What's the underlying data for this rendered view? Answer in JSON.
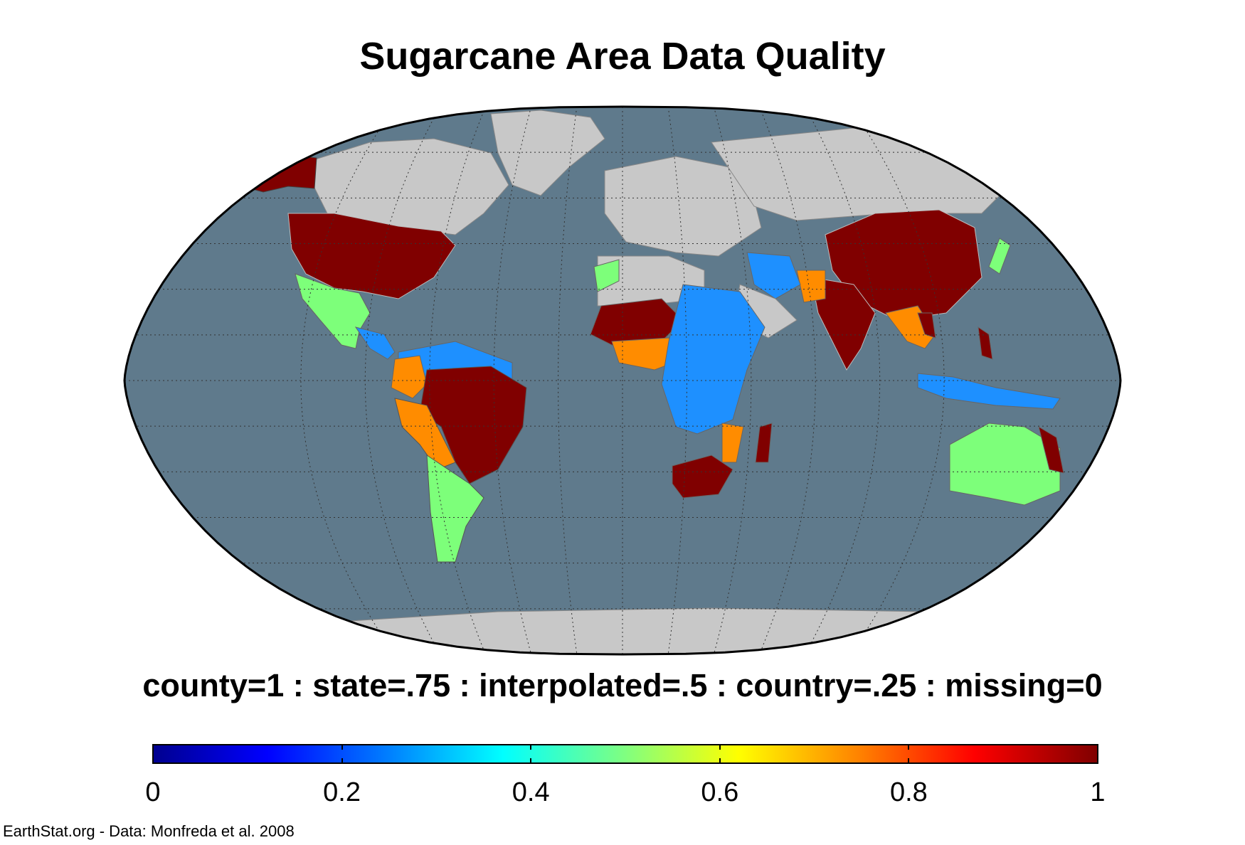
{
  "title": "Sugarcane Area Data Quality",
  "legend": {
    "caption": "county=1 : state=.75 : interpolated=.5 : country=.25 : missing=0",
    "colormap": "jet",
    "range": [
      0,
      1
    ],
    "ticks": [
      "0",
      "0.2",
      "0.4",
      "0.6",
      "0.8",
      "1"
    ],
    "tick_values": [
      0,
      0.2,
      0.4,
      0.6,
      0.8,
      1
    ],
    "categories": [
      {
        "label": "county",
        "value": 1,
        "color": "#800000"
      },
      {
        "label": "state",
        "value": 0.75,
        "color": "#ff8c00"
      },
      {
        "label": "interpolated",
        "value": 0.5,
        "color": "#7dff7a"
      },
      {
        "label": "country",
        "value": 0.25,
        "color": "#1e90ff"
      },
      {
        "label": "missing",
        "value": 0,
        "color": "#c8c8c8"
      }
    ]
  },
  "map": {
    "projection": "Robinson",
    "ocean_color": "#5f7a8c",
    "no_data_land_color": "#c8c8c8",
    "graticule": true
  },
  "credit": "EarthStat.org - Data: Monfreda et al. 2008"
}
